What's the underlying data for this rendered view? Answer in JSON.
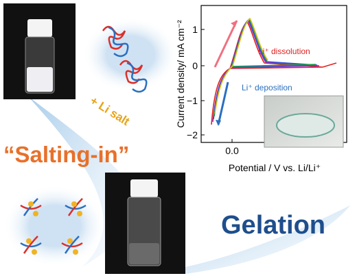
{
  "labels": {
    "li_salt": "+ Li salt",
    "salting_in": "“Salting-in”",
    "gelation": "Gelation"
  },
  "plot": {
    "y_axis_label": "Current density/ mA cm⁻²",
    "x_axis_label": "Potential / V vs. Li/Li⁺",
    "y_ticks": [
      "1",
      "0",
      "−1",
      "−2"
    ],
    "x_ticks": [
      "0.0"
    ],
    "annotations": [
      "Li⁺ dissolution",
      "Li⁺ deposition"
    ]
  }
}
